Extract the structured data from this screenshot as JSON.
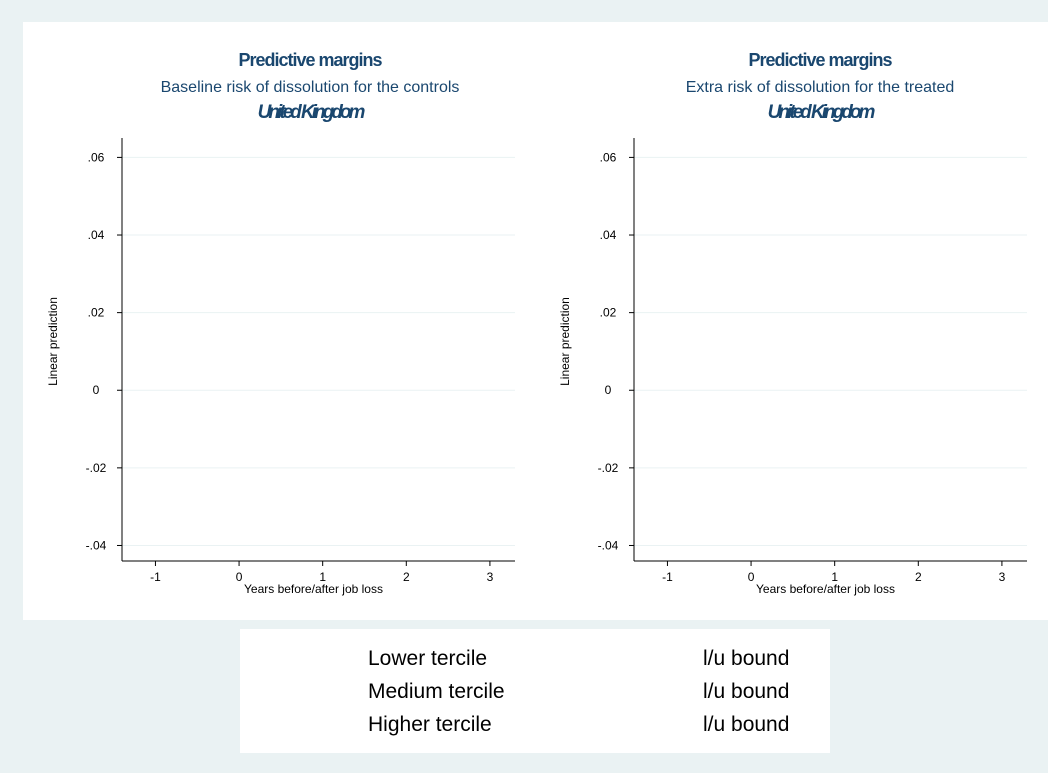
{
  "chart_data": [
    {
      "type": "line",
      "title": "Predictive margins",
      "subtitle": "Baseline risk of dissolution for the controls",
      "note": "United Kingdom",
      "xlabel": "Years before/after job loss",
      "ylabel": "Linear prediction",
      "xticks": [
        "-1",
        "0",
        "1",
        "2",
        "3"
      ],
      "yticks": [
        ".06",
        ".04",
        ".02",
        "0",
        "-.02",
        "-.04"
      ],
      "xlim": [
        -1.4,
        3.3
      ],
      "ylim": [
        -0.044,
        0.065
      ],
      "grid": true,
      "series": []
    },
    {
      "type": "line",
      "title": "Predictive margins",
      "subtitle": "Extra risk of dissolution for the treated",
      "note": "United Kingdom",
      "xlabel": "Years before/after job loss",
      "ylabel": "Linear prediction",
      "xticks": [
        "-1",
        "0",
        "1",
        "2",
        "3"
      ],
      "yticks": [
        ".06",
        ".04",
        ".02",
        "0",
        "-.02",
        "-.04"
      ],
      "xlim": [
        -1.4,
        3.3
      ],
      "ylim": [
        -0.044,
        0.065
      ],
      "grid": true,
      "series": []
    }
  ],
  "legend": {
    "items": [
      {
        "label": "Lower tercile",
        "bound_label": "l/u bound"
      },
      {
        "label": "Medium tercile",
        "bound_label": "l/u bound"
      },
      {
        "label": "Higher tercile",
        "bound_label": "l/u bound"
      }
    ]
  },
  "colors": {
    "background": "#eaf2f3",
    "plot_background": "#ffffff",
    "title": "#1a476f",
    "grid": "#eaf2f3",
    "axis": "#000000"
  }
}
